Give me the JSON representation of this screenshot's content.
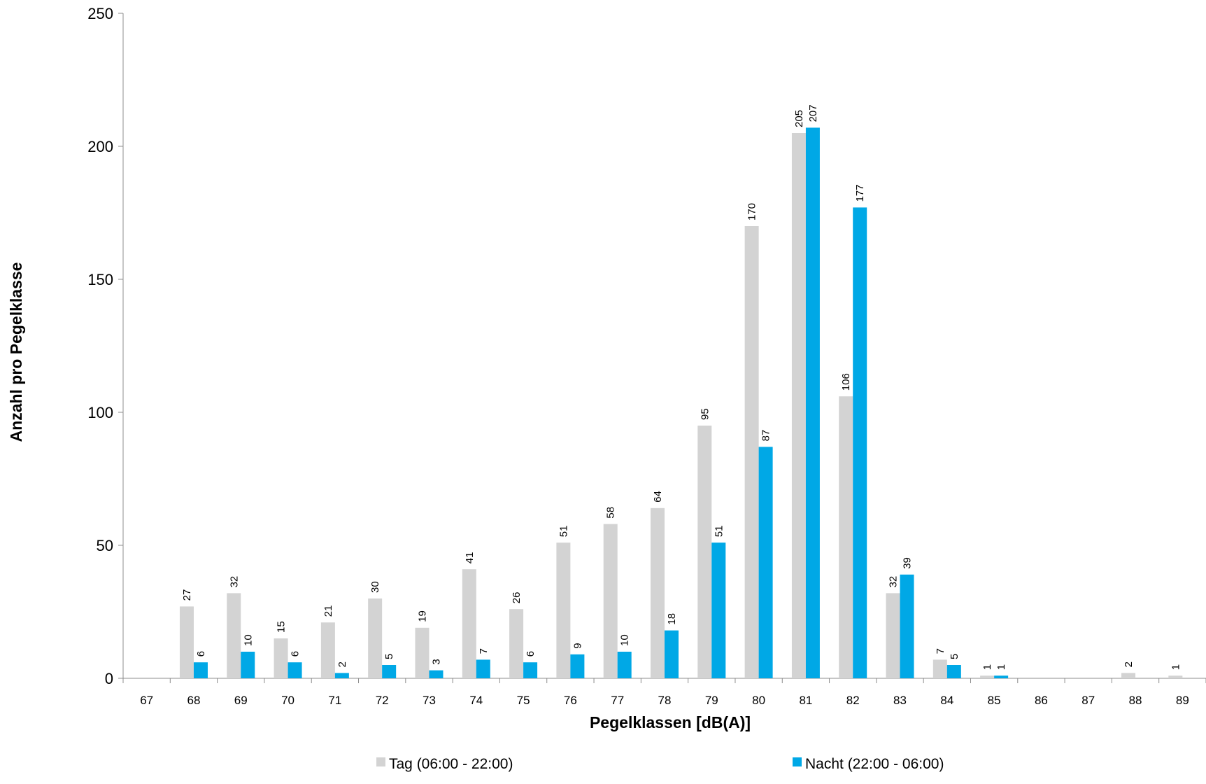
{
  "chart_data": {
    "type": "bar",
    "title": "",
    "xlabel": "Pegelklassen [dB(A)]",
    "ylabel": "Anzahl pro Pegelklasse",
    "ylim": [
      0,
      250
    ],
    "yticks": [
      0,
      50,
      100,
      150,
      200,
      250
    ],
    "grid": false,
    "legend_position": "bottom",
    "categories": [
      "67",
      "68",
      "69",
      "70",
      "71",
      "72",
      "73",
      "74",
      "75",
      "76",
      "77",
      "78",
      "79",
      "80",
      "81",
      "82",
      "83",
      "84",
      "85",
      "86",
      "87",
      "88",
      "89"
    ],
    "series": [
      {
        "name": "Tag (06:00 - 22:00)",
        "color": "#d3d3d3",
        "values": [
          null,
          27,
          32,
          15,
          21,
          30,
          19,
          41,
          26,
          51,
          58,
          64,
          95,
          170,
          205,
          106,
          32,
          7,
          1,
          null,
          null,
          2,
          1
        ]
      },
      {
        "name": "Nacht (22:00 - 06:00)",
        "color": "#00a8e6",
        "values": [
          null,
          6,
          10,
          6,
          2,
          5,
          3,
          7,
          6,
          9,
          10,
          18,
          51,
          87,
          207,
          177,
          39,
          5,
          1,
          null,
          null,
          null,
          null
        ]
      }
    ]
  }
}
